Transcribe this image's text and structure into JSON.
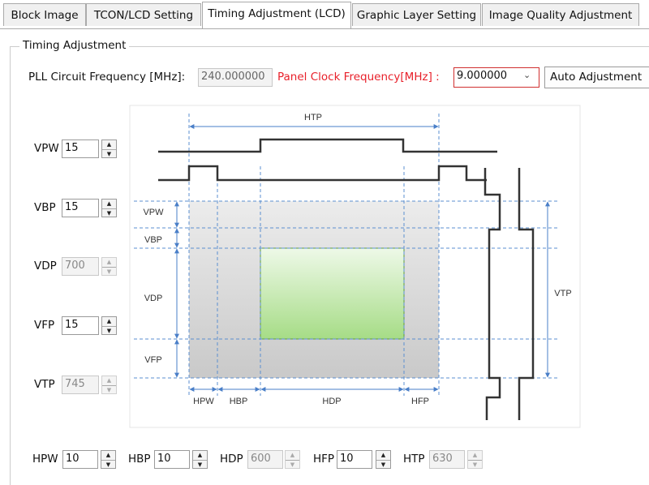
{
  "tabs": [
    "Block Image",
    "TCON/LCD Setting",
    "Timing Adjustment (LCD)",
    "Graphic Layer Setting",
    "Image Quality Adjustment"
  ],
  "group": {
    "title": "Timing Adjustment"
  },
  "clock": {
    "pll_label": "PLL Circuit Frequency [MHz]:",
    "pll_value": "240.000000",
    "panel_label": "Panel Clock Frequency[MHz] :",
    "panel_value": "9.000000",
    "button": "Auto Adjustment"
  },
  "vertical": [
    {
      "label": "VPW",
      "value": 15,
      "enabled": true
    },
    {
      "label": "VBP",
      "value": 15,
      "enabled": true
    },
    {
      "label": "VDP",
      "value": 700,
      "enabled": false
    },
    {
      "label": "VFP",
      "value": 15,
      "enabled": true
    },
    {
      "label": "VTP",
      "value": 745,
      "enabled": false
    }
  ],
  "horizontal": [
    {
      "label": "HPW",
      "value": 10,
      "enabled": true
    },
    {
      "label": "HBP",
      "value": 10,
      "enabled": true
    },
    {
      "label": "HDP",
      "value": 600,
      "enabled": false
    },
    {
      "label": "HFP",
      "value": 10,
      "enabled": true
    },
    {
      "label": "HTP",
      "value": 630,
      "enabled": false
    }
  ],
  "diagram": {
    "htp": "HTP",
    "vpw": "VPW",
    "vbp": "VBP",
    "vdp": "VDP",
    "vfp": "VFP",
    "vtp": "VTP",
    "hpw": "HPW",
    "hbp": "HBP",
    "hdp": "HDP",
    "hfp": "HFP"
  }
}
